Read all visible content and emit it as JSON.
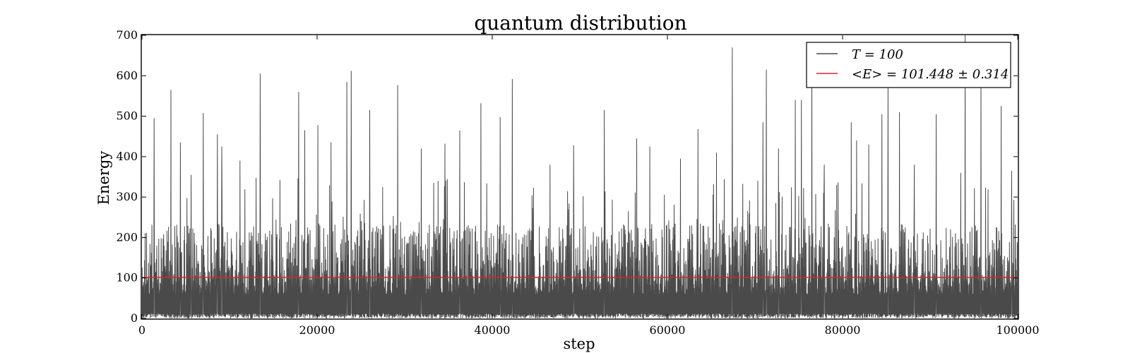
{
  "chart_data": {
    "type": "line",
    "title": "quantum distribution",
    "xlabel": "step",
    "ylabel": "Energy",
    "xlim": [
      0,
      100000
    ],
    "ylim": [
      0,
      700
    ],
    "x_ticks": [
      0,
      20000,
      40000,
      60000,
      80000,
      100000
    ],
    "x_tick_labels": [
      "0",
      "20000",
      "40000",
      "60000",
      "80000",
      "100000"
    ],
    "y_ticks": [
      0,
      100,
      200,
      300,
      400,
      500,
      600,
      700
    ],
    "y_tick_labels": [
      "0",
      "100",
      "200",
      "300",
      "400",
      "500",
      "600",
      "700"
    ],
    "grid": false,
    "legend_position": "top-right",
    "colors": {
      "trace": "#4a4a4a",
      "mean": "#d62728",
      "axes": "#000000"
    },
    "series": [
      {
        "name": "T = 100",
        "legend_label": "T = 100",
        "kind": "trace",
        "peaks": [
          {
            "x": 1400,
            "y": 495
          },
          {
            "x": 3300,
            "y": 565
          },
          {
            "x": 4400,
            "y": 435
          },
          {
            "x": 5600,
            "y": 355
          },
          {
            "x": 7000,
            "y": 508
          },
          {
            "x": 8600,
            "y": 455
          },
          {
            "x": 9100,
            "y": 425
          },
          {
            "x": 11200,
            "y": 390
          },
          {
            "x": 13500,
            "y": 605
          },
          {
            "x": 17900,
            "y": 560
          },
          {
            "x": 18600,
            "y": 465
          },
          {
            "x": 20100,
            "y": 478
          },
          {
            "x": 21600,
            "y": 435
          },
          {
            "x": 23400,
            "y": 585
          },
          {
            "x": 23900,
            "y": 612
          },
          {
            "x": 26000,
            "y": 515
          },
          {
            "x": 29200,
            "y": 577
          },
          {
            "x": 31900,
            "y": 420
          },
          {
            "x": 34600,
            "y": 432
          },
          {
            "x": 36300,
            "y": 465
          },
          {
            "x": 38700,
            "y": 532
          },
          {
            "x": 40900,
            "y": 498
          },
          {
            "x": 42300,
            "y": 592
          },
          {
            "x": 46600,
            "y": 380
          },
          {
            "x": 49300,
            "y": 428
          },
          {
            "x": 52800,
            "y": 515
          },
          {
            "x": 56500,
            "y": 445
          },
          {
            "x": 58000,
            "y": 425
          },
          {
            "x": 61500,
            "y": 395
          },
          {
            "x": 63500,
            "y": 468
          },
          {
            "x": 65600,
            "y": 410
          },
          {
            "x": 67400,
            "y": 670
          },
          {
            "x": 70900,
            "y": 485
          },
          {
            "x": 71300,
            "y": 615
          },
          {
            "x": 72700,
            "y": 420
          },
          {
            "x": 74600,
            "y": 540
          },
          {
            "x": 75300,
            "y": 540
          },
          {
            "x": 76500,
            "y": 640
          },
          {
            "x": 77900,
            "y": 380
          },
          {
            "x": 81000,
            "y": 485
          },
          {
            "x": 81600,
            "y": 440
          },
          {
            "x": 83000,
            "y": 430
          },
          {
            "x": 84500,
            "y": 505
          },
          {
            "x": 85200,
            "y": 570
          },
          {
            "x": 86500,
            "y": 510
          },
          {
            "x": 88200,
            "y": 380
          },
          {
            "x": 90700,
            "y": 505
          },
          {
            "x": 93500,
            "y": 360
          },
          {
            "x": 94000,
            "y": 700
          },
          {
            "x": 95800,
            "y": 610
          },
          {
            "x": 98100,
            "y": 525
          },
          {
            "x": 99300,
            "y": 365
          }
        ],
        "typical_band": [
          0,
          200
        ]
      },
      {
        "name": "<E> = 101.448 ± 0.314",
        "legend_label": "<E> = 101.448 ± 0.314",
        "kind": "hline",
        "y": 101.448,
        "error": 0.314
      }
    ]
  }
}
